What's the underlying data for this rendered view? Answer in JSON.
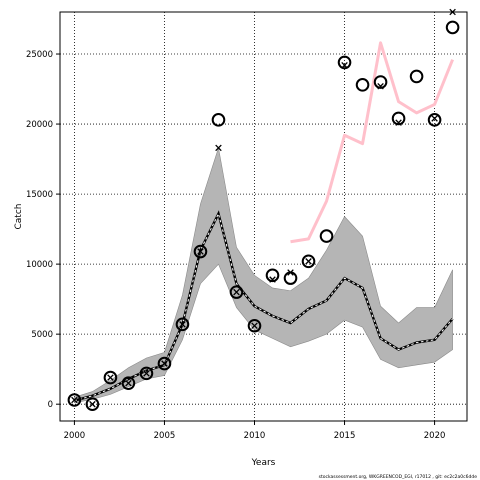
{
  "chart_data": {
    "type": "line",
    "title": "",
    "xlabel": "Years",
    "ylabel": "Catch",
    "footer": "stockassessment.org, WKGREENCOD_EGI, r17012 , git: ec2c2a0c6dde",
    "xlim": [
      1999.2,
      2021.8
    ],
    "ylim": [
      -1200,
      28000
    ],
    "xticks": [
      2000,
      2005,
      2010,
      2015,
      2020
    ],
    "yticks": [
      0,
      5000,
      10000,
      15000,
      20000,
      25000
    ],
    "grid": true,
    "legend": "none",
    "colors": {
      "band": "#b5b5b5",
      "estimate": "#000000",
      "pink": "#ffc0cb",
      "observed": "#000000"
    },
    "x": [
      2000,
      2001,
      2002,
      2003,
      2004,
      2005,
      2006,
      2007,
      2008,
      2009,
      2010,
      2011,
      2012,
      2013,
      2014,
      2015,
      2016,
      2017,
      2018,
      2019,
      2020,
      2021
    ],
    "band_upper": [
      500,
      900,
      1700,
      2600,
      3300,
      3700,
      7800,
      14300,
      18300,
      11200,
      9200,
      8300,
      8100,
      9000,
      11000,
      13400,
      12000,
      7000,
      5800,
      6900,
      6900,
      9600
    ],
    "band_lower": [
      100,
      350,
      700,
      1250,
      1800,
      2050,
      4600,
      8600,
      10000,
      6900,
      5300,
      4700,
      4100,
      4500,
      5000,
      6000,
      5500,
      3200,
      2600,
      2800,
      3000,
      3900
    ],
    "estimate": [
      250,
      600,
      1100,
      1800,
      2400,
      2800,
      5700,
      11000,
      13600,
      8600,
      7000,
      6300,
      5800,
      6800,
      7400,
      9000,
      8300,
      4700,
      3900,
      4400,
      4600,
      6100
    ],
    "pink_x": [
      2012,
      2013,
      2014,
      2015,
      2016,
      2017,
      2018,
      2019,
      2020,
      2021
    ],
    "pink": [
      11600,
      11800,
      14500,
      19200,
      18600,
      25800,
      21600,
      20800,
      21400,
      24600
    ],
    "observed_circles": [
      300,
      0,
      1900,
      1500,
      2200,
      2900,
      5700,
      10900,
      20300,
      8000,
      5600,
      9200,
      9000,
      10200,
      12000,
      24400,
      22800,
      23000,
      20400,
      23400,
      20300,
      26900
    ],
    "predicted_x": [
      {
        "x": 2000,
        "y": 300
      },
      {
        "x": 2001,
        "y": 0
      },
      {
        "x": 2002,
        "y": 1900
      },
      {
        "x": 2003,
        "y": 1500
      },
      {
        "x": 2004,
        "y": 2200
      },
      {
        "x": 2005,
        "y": 2900
      },
      {
        "x": 2006,
        "y": 5700
      },
      {
        "x": 2007,
        "y": 10900
      },
      {
        "x": 2008,
        "y": 18300
      },
      {
        "x": 2009,
        "y": 8000
      },
      {
        "x": 2010,
        "y": 5600
      },
      {
        "x": 2011,
        "y": 8900
      },
      {
        "x": 2012,
        "y": 9400
      },
      {
        "x": 2013,
        "y": 10200
      },
      {
        "x": 2015,
        "y": 24200
      },
      {
        "x": 2017,
        "y": 22700
      },
      {
        "x": 2018,
        "y": 20100
      },
      {
        "x": 2020,
        "y": 20400
      },
      {
        "x": 2021,
        "y": 28000
      }
    ]
  }
}
